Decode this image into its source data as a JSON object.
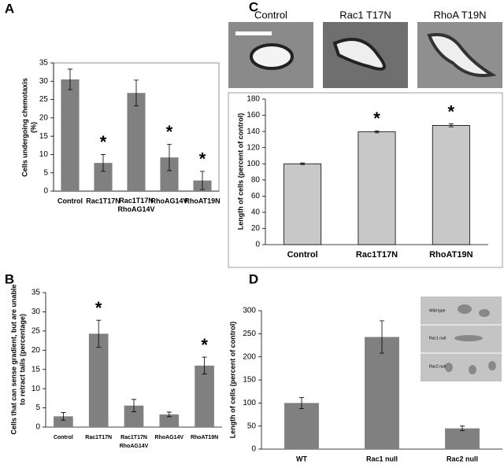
{
  "chart_data": [
    {
      "type": "bar",
      "panel": "A",
      "y_label": "Cells undergoing chemotaxis\n(%)",
      "categories": [
        "Control",
        "Rac1T17N",
        "Rac1T17N\nRhoAG14V",
        "RhoAG14V",
        "RhoAT19N"
      ],
      "values": [
        30.5,
        7.7,
        26.8,
        9.2,
        2.9
      ],
      "errors": [
        2.8,
        2.3,
        3.5,
        3.6,
        2.5
      ],
      "annotations": [
        null,
        "*",
        null,
        "*",
        "*"
      ],
      "color": "#808080",
      "ylim": [
        0,
        35
      ],
      "yticks": [
        0,
        5,
        10,
        15,
        20,
        25,
        30,
        35
      ]
    },
    {
      "type": "bar",
      "panel": "B",
      "y_label": "Cells that can sense gradient, but are unable\nto retract tails (percentage)",
      "categories": [
        "Control",
        "Rac1T17N",
        "Rac1T17N\nRhoAG14V",
        "RhoAG14V",
        "RhoAT19N"
      ],
      "values": [
        2.8,
        24.3,
        5.6,
        3.3,
        16.0
      ],
      "errors": [
        1.0,
        3.5,
        1.6,
        0.6,
        2.2
      ],
      "annotations": [
        null,
        "*",
        null,
        null,
        "*"
      ],
      "color": "#808080",
      "ylim": [
        0,
        35
      ],
      "yticks": [
        0,
        5,
        10,
        15,
        20,
        25,
        30,
        35
      ]
    },
    {
      "type": "bar",
      "panel": "C",
      "y_label": "Length of cells (percent of control)",
      "image_labels": [
        "Control",
        "Rac1 T17N",
        "RhoA T19N"
      ],
      "categories": [
        "Control",
        "Rac1T17N",
        "RhoAT19N"
      ],
      "values": [
        100,
        139.5,
        147.5
      ],
      "errors": [
        1.0,
        1.2,
        1.8
      ],
      "annotations": [
        null,
        "*",
        "*"
      ],
      "color": "#c8c8c8",
      "ylim": [
        0,
        180
      ],
      "yticks": [
        0,
        20,
        40,
        60,
        80,
        100,
        120,
        140,
        160,
        180
      ]
    },
    {
      "type": "bar",
      "panel": "D",
      "y_label": "Length of cells (percent of control)",
      "image_labels": [
        "Wild type",
        "Rac1 null",
        "Rac2 null"
      ],
      "categories": [
        "WT",
        "Rac1 null",
        "Rac2 null"
      ],
      "values": [
        100,
        243,
        45
      ],
      "errors": [
        12,
        35,
        5
      ],
      "color": "#808080",
      "ylim": [
        0,
        300
      ],
      "yticks": [
        0,
        50,
        100,
        150,
        200,
        250,
        300
      ]
    }
  ]
}
